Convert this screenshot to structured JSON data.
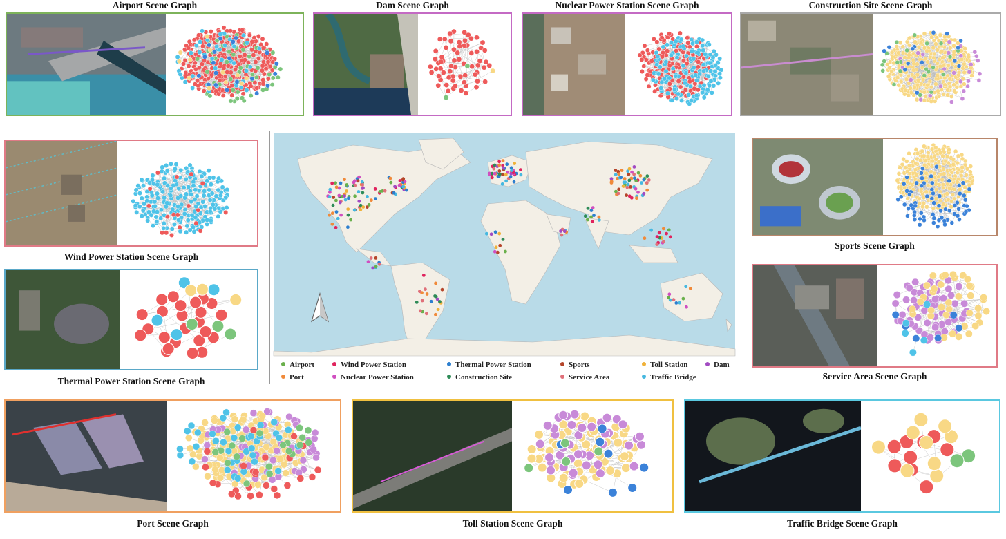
{
  "colors": {
    "airport": "#6ab04c",
    "port": "#f08a3a",
    "wind_power_station": "#e0245e",
    "nuclear_power_station": "#d04fc0",
    "thermal_power_station": "#2d7fcf",
    "construction_site": "#2e8b57",
    "sports": "#b5452a",
    "service_area": "#e0707a",
    "toll_station": "#f0b23a",
    "traffic_bridge": "#46b8e0",
    "dam": "#a24bc2",
    "node_red": "#ee5a5a",
    "node_blue": "#4fc3e8",
    "node_yellow": "#f8d885",
    "node_purple": "#c88ad8",
    "node_green": "#7cc57c",
    "node_royal": "#3b82d9",
    "ocean": "#b9dbe8",
    "land": "#f3efe6"
  },
  "panels": {
    "airport": {
      "title": "Airport Scene Graph"
    },
    "dam": {
      "title": "Dam Scene Graph"
    },
    "nuclear": {
      "title": "Nuclear Power Station Scene Graph"
    },
    "construction": {
      "title": "Construction Site Scene Graph"
    },
    "wind": {
      "title": "Wind Power Station Scene Graph"
    },
    "thermal": {
      "title": "Thermal Power Station Scene Graph"
    },
    "sports": {
      "title": "Sports Scene Graph"
    },
    "service": {
      "title": "Service Area Scene Graph"
    },
    "port": {
      "title": "Port Scene Graph"
    },
    "toll": {
      "title": "Toll Station Scene Graph"
    },
    "bridge": {
      "title": "Traffic Bridge Scene Graph"
    }
  },
  "map": {
    "north_arrow_icon": "north-arrow-icon",
    "legend": [
      {
        "label": "Airport",
        "color": "#6ab04c"
      },
      {
        "label": "Port",
        "color": "#f08a3a"
      },
      {
        "label": "Wind Power Station",
        "color": "#e0245e"
      },
      {
        "label": "Nuclear Power Station",
        "color": "#d04fc0"
      },
      {
        "label": "Thermal Power Station",
        "color": "#2d7fcf"
      },
      {
        "label": "Construction Site",
        "color": "#2e8b57"
      },
      {
        "label": "Sports",
        "color": "#b5452a"
      },
      {
        "label": "Service Area",
        "color": "#e0707a"
      },
      {
        "label": "Toll Station",
        "color": "#f0b23a"
      },
      {
        "label": "Traffic Bridge",
        "color": "#46b8e0"
      },
      {
        "label": "Dam",
        "color": "#a24bc2"
      }
    ]
  }
}
